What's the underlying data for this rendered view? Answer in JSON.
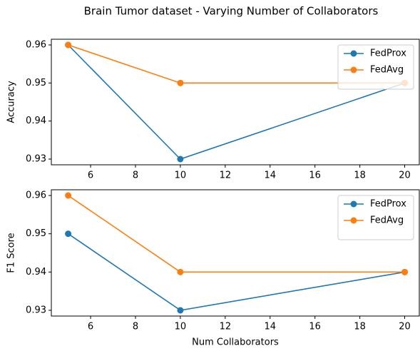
{
  "title": "Brain Tumor dataset - Varying Number of Collaborators",
  "chart_data": [
    {
      "type": "line",
      "ylabel": "Accuracy",
      "x": [
        5,
        10,
        20
      ],
      "series": [
        {
          "name": "FedProx",
          "color": "#1f77b4",
          "values": [
            0.96,
            0.93,
            0.95
          ]
        },
        {
          "name": "FedAvg",
          "color": "#ff7f0e",
          "values": [
            0.96,
            0.95,
            0.95
          ]
        }
      ],
      "xlim": [
        4.25,
        20.65
      ],
      "xticks": [
        6,
        8,
        10,
        12,
        14,
        16,
        18,
        20
      ],
      "ylim": [
        0.9285,
        0.9615
      ],
      "yticks": [
        0.93,
        0.94,
        0.95,
        0.96
      ],
      "legend": "upper right",
      "grid": false
    },
    {
      "type": "line",
      "ylabel": "F1 Score",
      "xlabel": "Num Collaborators",
      "x": [
        5,
        10,
        20
      ],
      "series": [
        {
          "name": "FedProx",
          "color": "#1f77b4",
          "values": [
            0.95,
            0.93,
            0.94
          ]
        },
        {
          "name": "FedAvg",
          "color": "#ff7f0e",
          "values": [
            0.96,
            0.94,
            0.94
          ]
        }
      ],
      "xlim": [
        4.25,
        20.65
      ],
      "xticks": [
        6,
        8,
        10,
        12,
        14,
        16,
        18,
        20
      ],
      "ylim": [
        0.9285,
        0.9615
      ],
      "yticks": [
        0.93,
        0.94,
        0.95,
        0.96
      ],
      "legend": "upper right",
      "grid": false
    }
  ]
}
